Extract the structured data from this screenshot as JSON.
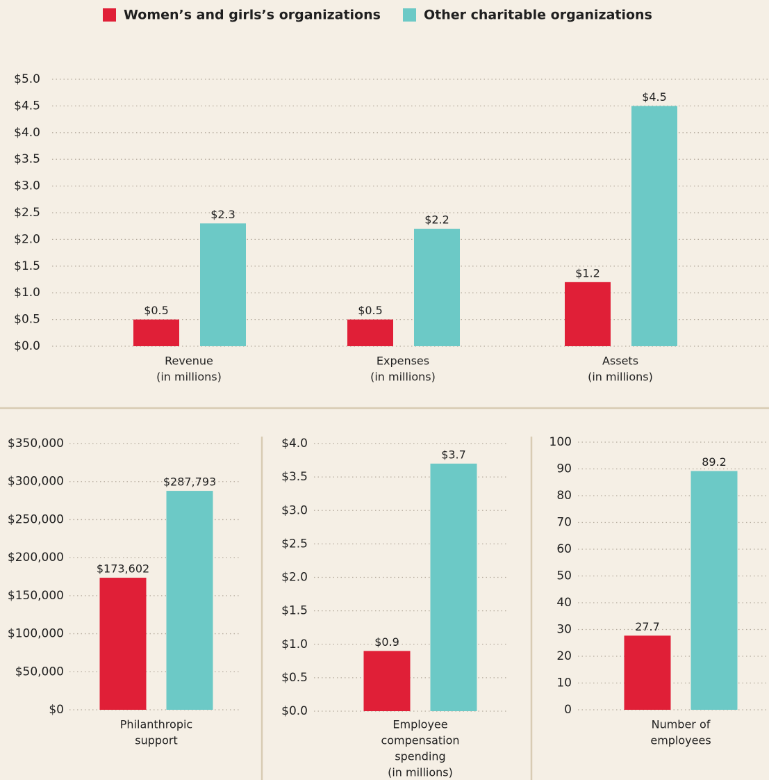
{
  "legend": {
    "items": [
      {
        "name": "Women’s and girls’s organizations",
        "color": "#e01f37"
      },
      {
        "name": "Other charitable organizations",
        "color": "#6cc9c6"
      }
    ]
  },
  "chart_data": [
    {
      "type": "bar",
      "categories": [
        [
          "Revenue",
          "(in millions)"
        ],
        [
          "Expenses",
          "(in millions)"
        ],
        [
          "Assets",
          "(in millions)"
        ]
      ],
      "series": [
        {
          "color": "#e01f37",
          "values": [
            0.5,
            0.5,
            1.2
          ],
          "value_labels": [
            "$0.5",
            "$0.5",
            "$1.2"
          ]
        },
        {
          "color": "#6cc9c6",
          "values": [
            2.3,
            2.2,
            4.5
          ],
          "value_labels": [
            "$2.3",
            "$2.2",
            "$4.5"
          ]
        }
      ],
      "ylim": [
        0,
        5
      ],
      "yticks": [
        {
          "value": 0,
          "label": "$0.0"
        },
        {
          "value": 0.5,
          "label": "$0.5"
        },
        {
          "value": 1,
          "label": "$1.0"
        },
        {
          "value": 1.5,
          "label": "$1.5"
        },
        {
          "value": 2,
          "label": "$2.0"
        },
        {
          "value": 2.5,
          "label": "$2.5"
        },
        {
          "value": 3,
          "label": "$3.0"
        },
        {
          "value": 3.5,
          "label": "$3.5"
        },
        {
          "value": 4,
          "label": "$4.0"
        },
        {
          "value": 4.5,
          "label": "$4.5"
        },
        {
          "value": 5,
          "label": "$5.0"
        }
      ],
      "grid": true
    },
    {
      "type": "bar",
      "categories": [
        [
          "Philanthropic",
          "support"
        ]
      ],
      "series": [
        {
          "color": "#e01f37",
          "values": [
            173602
          ],
          "value_labels": [
            "$173,602"
          ]
        },
        {
          "color": "#6cc9c6",
          "values": [
            287793
          ],
          "value_labels": [
            "$287,793"
          ]
        }
      ],
      "ylim": [
        0,
        350000
      ],
      "yticks": [
        {
          "value": 0,
          "label": "$0"
        },
        {
          "value": 50000,
          "label": "$50,000"
        },
        {
          "value": 100000,
          "label": "$100,000"
        },
        {
          "value": 150000,
          "label": "$150,000"
        },
        {
          "value": 200000,
          "label": "$200,000"
        },
        {
          "value": 250000,
          "label": "$250,000"
        },
        {
          "value": 300000,
          "label": "$300,000"
        },
        {
          "value": 350000,
          "label": "$350,000"
        }
      ],
      "grid": true
    },
    {
      "type": "bar",
      "categories": [
        [
          "Employee",
          "compensation",
          "spending",
          "(in millions)"
        ]
      ],
      "series": [
        {
          "color": "#e01f37",
          "values": [
            0.9
          ],
          "value_labels": [
            "$0.9"
          ]
        },
        {
          "color": "#6cc9c6",
          "values": [
            3.7
          ],
          "value_labels": [
            "$3.7"
          ]
        }
      ],
      "ylim": [
        0,
        4
      ],
      "yticks": [
        {
          "value": 0,
          "label": "$0.0"
        },
        {
          "value": 0.5,
          "label": "$0.5"
        },
        {
          "value": 1,
          "label": "$1.0"
        },
        {
          "value": 1.5,
          "label": "$1.5"
        },
        {
          "value": 2,
          "label": "$2.0"
        },
        {
          "value": 2.5,
          "label": "$2.5"
        },
        {
          "value": 3,
          "label": "$3.0"
        },
        {
          "value": 3.5,
          "label": "$3.5"
        },
        {
          "value": 4,
          "label": "$4.0"
        }
      ],
      "grid": true
    },
    {
      "type": "bar",
      "categories": [
        [
          "Number of",
          "employees"
        ]
      ],
      "series": [
        {
          "color": "#e01f37",
          "values": [
            27.7
          ]
        },
        {
          "color": "#6cc9c6",
          "values": [
            89.2
          ]
        }
      ],
      "ylim": [
        0,
        100
      ],
      "yticks": [
        0,
        10,
        20,
        30,
        40,
        50,
        60,
        70,
        80,
        90,
        100
      ],
      "grid": true
    }
  ]
}
